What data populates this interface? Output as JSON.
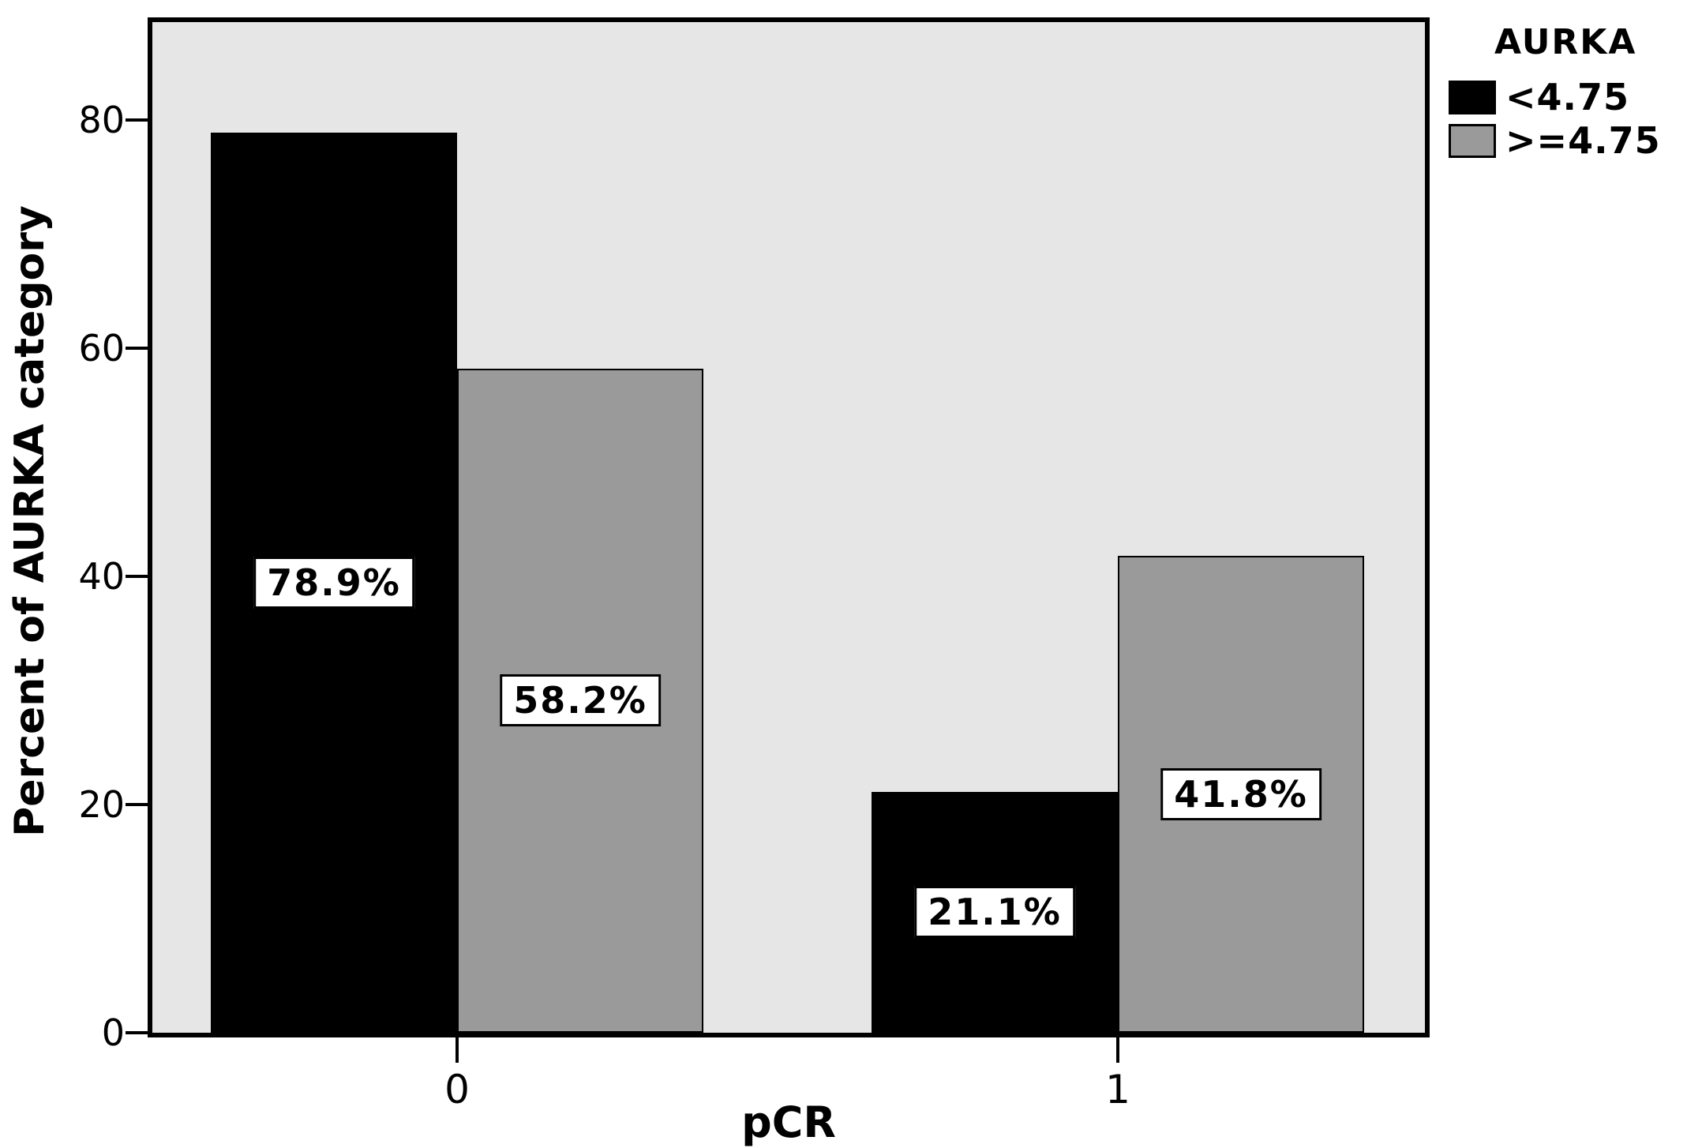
{
  "chart_data": {
    "type": "bar",
    "title": "",
    "xlabel": "pCR",
    "ylabel": "Percent of AURKA category",
    "categories": [
      "0",
      "1"
    ],
    "series": [
      {
        "name": "<4.75",
        "color": "#000000",
        "values": [
          78.9,
          21.1
        ],
        "labels": [
          "78.9%",
          "21.1%"
        ]
      },
      {
        "name": ">=4.75",
        "color": "#9a9a9a",
        "values": [
          58.2,
          41.8
        ],
        "labels": [
          "58.2%",
          "41.8%"
        ]
      }
    ],
    "yticks": [
      "0",
      "20",
      "40",
      "60",
      "80"
    ],
    "ylim": [
      0,
      88.6
    ],
    "grid": false,
    "legend_title": "AURKA",
    "legend_position": "top-right-outside",
    "plot_background": "#e6e6e6",
    "bar_border_color": "#000000",
    "value_label_background": "#ffffff"
  }
}
